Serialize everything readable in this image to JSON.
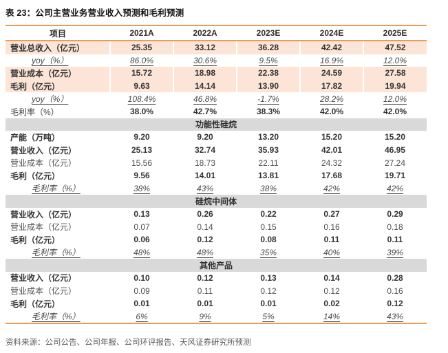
{
  "title": "表 23：公司主营业务营业收入预测和毛利预测",
  "source": "资料来源：公司公告、公司年报、公司环评报告、天风证券研究所预测",
  "colors": {
    "accent_line": "#ee9a51",
    "row_highlight": "#fce4d6",
    "section_bg": "#d9d9d9",
    "text": "#3d3d3d",
    "muted_text": "#595959"
  },
  "table": {
    "header": [
      "项目",
      "2021A",
      "2022A",
      "2023E",
      "2024E",
      "2025E"
    ],
    "rows": [
      {
        "label": "营业总收入（亿元）",
        "style": "hl",
        "values": [
          "25.35",
          "33.12",
          "36.28",
          "42.42",
          "47.52"
        ]
      },
      {
        "label": "yoy（%）",
        "style": "pct",
        "values": [
          "86.0%",
          "30.6%",
          "9.5%",
          "16.9%",
          "12.0%"
        ]
      },
      {
        "label": "营业成本（亿元）",
        "style": "hl",
        "values": [
          "15.72",
          "18.98",
          "22.38",
          "24.59",
          "27.58"
        ]
      },
      {
        "label": "毛利（亿元）",
        "style": "hl",
        "values": [
          "9.63",
          "14.14",
          "13.90",
          "17.82",
          "19.94"
        ]
      },
      {
        "label": "yoy（%）",
        "style": "pct",
        "values": [
          "108.4%",
          "46.8%",
          "-1.7%",
          "28.2%",
          "12.0%"
        ]
      },
      {
        "label": "毛利率（%）",
        "style": "rate",
        "values": [
          "38.0%",
          "42.7%",
          "38.3%",
          "42.0%",
          "42.0%"
        ]
      },
      {
        "label": "功能性硅烷",
        "style": "section",
        "values": []
      },
      {
        "label": "产能（万吨）",
        "style": "bold",
        "values": [
          "9.20",
          "9.20",
          "13.20",
          "15.20",
          "15.20"
        ]
      },
      {
        "label": "营业收入（亿元）",
        "style": "bold",
        "values": [
          "25.13",
          "32.74",
          "35.93",
          "42.01",
          "46.95"
        ]
      },
      {
        "label": "营业成本（亿元）",
        "style": "plain",
        "values": [
          "15.56",
          "18.73",
          "22.11",
          "24.32",
          "27.24"
        ]
      },
      {
        "label": "毛利（亿元）",
        "style": "bold",
        "values": [
          "9.56",
          "14.01",
          "13.81",
          "17.68",
          "19.71"
        ]
      },
      {
        "label": "毛利率（%）",
        "style": "pct",
        "values": [
          "38%",
          "43%",
          "38%",
          "42%",
          "42%"
        ]
      },
      {
        "label": "硅烷中间体",
        "style": "section",
        "values": []
      },
      {
        "label": "营业收入（亿元）",
        "style": "bold",
        "values": [
          "0.13",
          "0.26",
          "0.22",
          "0.27",
          "0.29"
        ]
      },
      {
        "label": "营业成本（亿元）",
        "style": "plain",
        "values": [
          "0.07",
          "0.14",
          "0.15",
          "0.16",
          "0.18"
        ]
      },
      {
        "label": "毛利（亿元）",
        "style": "bold",
        "values": [
          "0.06",
          "0.12",
          "0.08",
          "0.11",
          "0.11"
        ]
      },
      {
        "label": "毛利率（%）",
        "style": "pct",
        "values": [
          "48%",
          "48%",
          "35%",
          "40%",
          "39%"
        ]
      },
      {
        "label": "其他产品",
        "style": "section",
        "values": []
      },
      {
        "label": "营业收入（亿元）",
        "style": "bold",
        "values": [
          "0.10",
          "0.12",
          "0.13",
          "0.14",
          "0.28"
        ]
      },
      {
        "label": "营业成本（亿元）",
        "style": "plain",
        "values": [
          "0.09",
          "0.11",
          "0.12",
          "0.12",
          "0.16"
        ]
      },
      {
        "label": "毛利（亿元）",
        "style": "bold",
        "values": [
          "0.01",
          "0.01",
          "0.01",
          "0.02",
          "0.12"
        ]
      },
      {
        "label": "毛利率（%）",
        "style": "pct",
        "values": [
          "6%",
          "9%",
          "5%",
          "14%",
          "43%"
        ]
      }
    ]
  }
}
